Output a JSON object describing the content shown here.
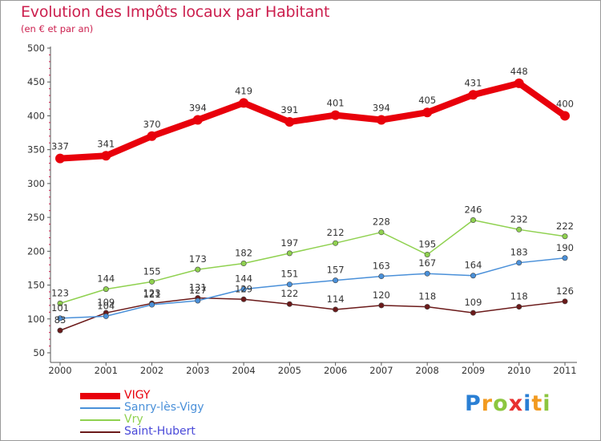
{
  "chart_data": {
    "type": "line",
    "title": "Evolution des Impôts locaux par Habitant",
    "subtitle": "(en € et par an)",
    "xlabel": "",
    "ylabel": "",
    "ylim": [
      50,
      500
    ],
    "yticks": [
      50,
      100,
      150,
      200,
      250,
      300,
      350,
      400,
      450,
      500
    ],
    "x": [
      "2000",
      "2001",
      "2002",
      "2003",
      "2004",
      "2005",
      "2006",
      "2007",
      "2008",
      "2009",
      "2010",
      "2011"
    ],
    "series": [
      {
        "name": "VIGY",
        "color": "#e8000b",
        "values": [
          337,
          341,
          370,
          394,
          419,
          391,
          401,
          394,
          405,
          431,
          448,
          400
        ]
      },
      {
        "name": "Sanry-lès-Vigy",
        "color": "#4a90d9",
        "values": [
          101,
          104,
          121,
          127,
          144,
          151,
          157,
          163,
          167,
          164,
          183,
          190
        ]
      },
      {
        "name": "Vry",
        "color": "#8fd14f",
        "values": [
          123,
          144,
          155,
          173,
          182,
          197,
          212,
          228,
          195,
          246,
          232,
          222
        ]
      },
      {
        "name": "Saint-Hubert",
        "color": "#6b1a1a",
        "values": [
          83,
          109,
          123,
          131,
          129,
          122,
          114,
          120,
          118,
          109,
          118,
          126
        ]
      }
    ]
  },
  "legend": {
    "items": [
      {
        "label": "VIGY",
        "color": "#e8000b"
      },
      {
        "label": "Sanry-lès-Vigy",
        "color": "#4a90d9"
      },
      {
        "label": "Vry",
        "color": "#8fd14f"
      },
      {
        "label": "Saint-Hubert",
        "color": "#6b1a1a"
      }
    ]
  },
  "logo": {
    "letters": [
      "P",
      "r",
      "o",
      "x",
      "i",
      "t",
      "i"
    ],
    "colors": [
      "#2a7fd4",
      "#f29a1f",
      "#8cc63f",
      "#e8312f",
      "#2a7fd4",
      "#f29a1f",
      "#8cc63f"
    ]
  },
  "colors": {
    "title": "#cc1f4e",
    "axis_text": "#333333",
    "grid_tick": "#cc1f4e"
  }
}
